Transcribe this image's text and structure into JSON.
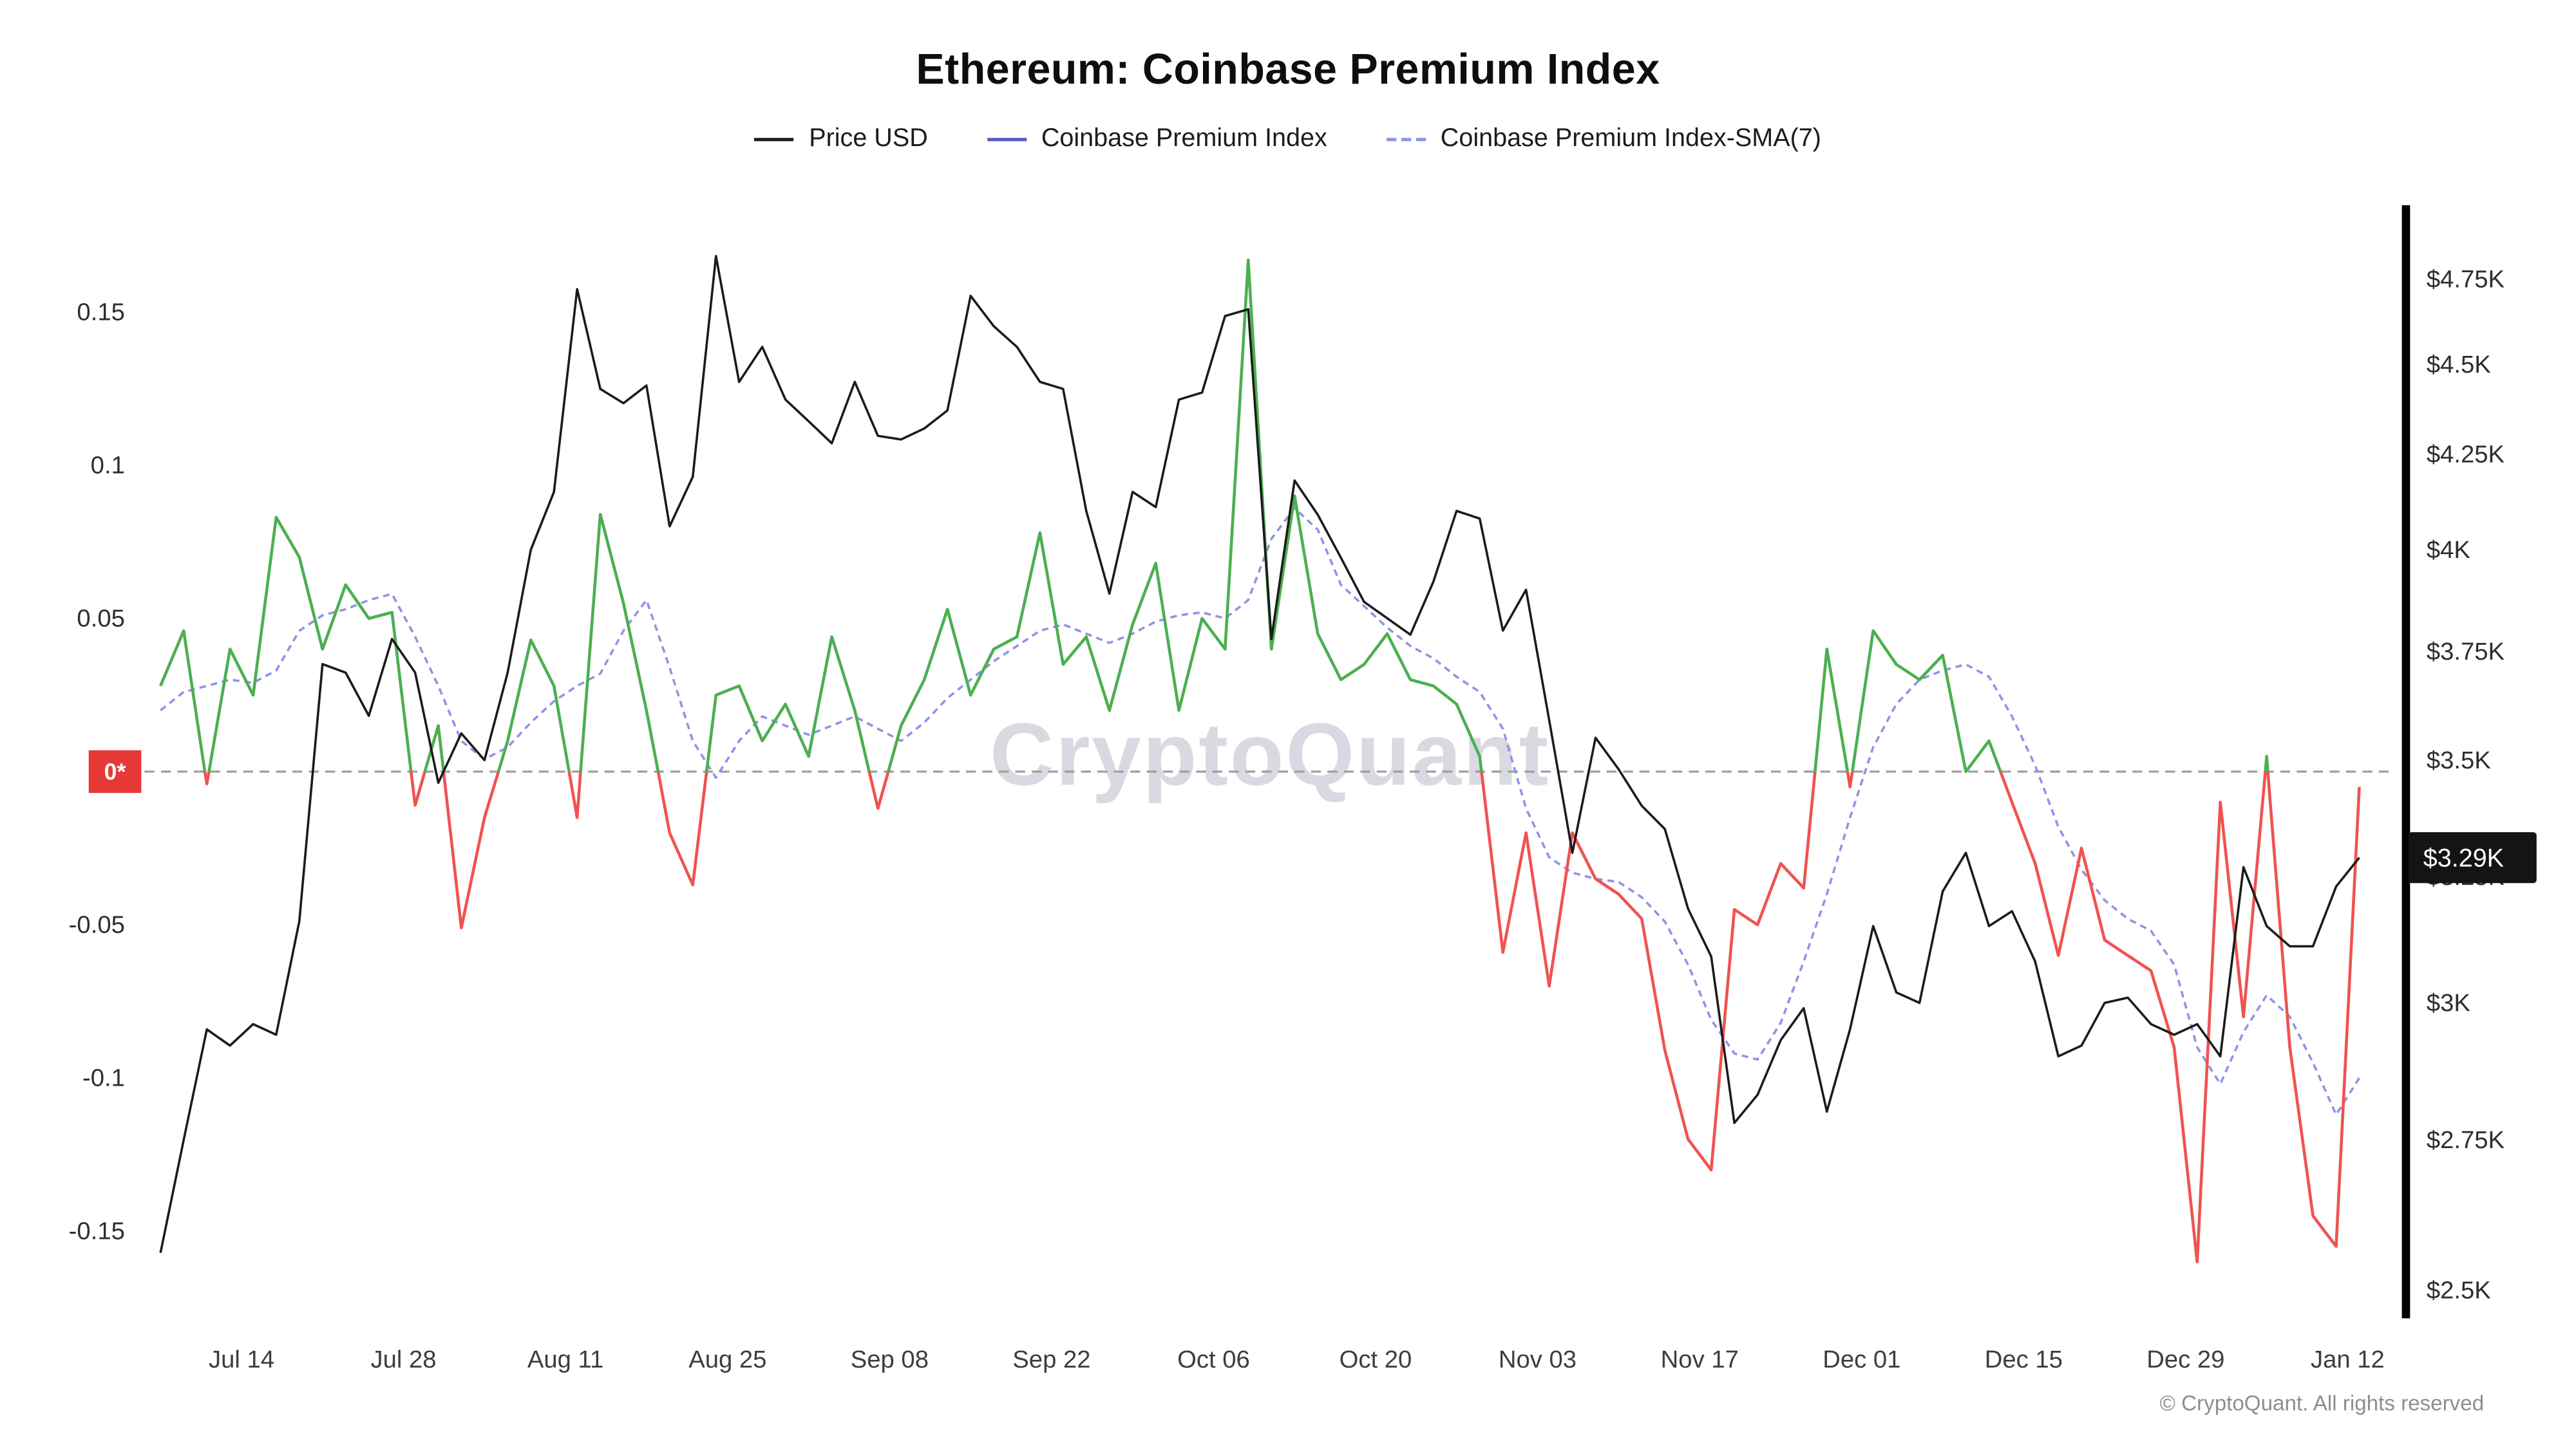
{
  "header": {
    "title": "Ethereum: Coinbase Premium Index"
  },
  "legend": [
    {
      "label": "Price USD",
      "color": "#1b1b1b",
      "style": "solid"
    },
    {
      "label": "Coinbase Premium Index",
      "color": "#5659c8",
      "style": "solid"
    },
    {
      "label": "Coinbase Premium Index-SMA(7)",
      "color": "#8f93e6",
      "style": "dashed"
    }
  ],
  "watermark": "CryptoQuant",
  "footer": {
    "copyright": "© CryptoQuant. All rights reserved"
  },
  "chart_data": {
    "type": "line",
    "title": "Ethereum: Coinbase Premium Index",
    "x_step_days": 2,
    "x_range_days": [
      0,
      191
    ],
    "x_ticks": {
      "days": [
        7,
        21,
        35,
        49,
        63,
        77,
        91,
        105,
        119,
        133,
        147,
        161,
        175,
        189
      ],
      "labels": [
        "Jul 14",
        "Jul 28",
        "Aug 11",
        "Aug 25",
        "Sep 08",
        "Sep 22",
        "Oct 06",
        "Oct 20",
        "Nov 03",
        "Nov 17",
        "Dec 01",
        "Dec 15",
        "Dec 29",
        "Jan 12"
      ]
    },
    "left_axis": {
      "name": "Coinbase Premium Index",
      "min": -0.175,
      "max": 0.185,
      "tick_values": [
        0.15,
        0.1,
        0.05,
        -0.05,
        -0.1,
        -0.15
      ],
      "tick_labels": [
        "0.15",
        "0.1",
        "0.05",
        "-0.05",
        "-0.1",
        "-0.15"
      ]
    },
    "right_axis": {
      "name": "Price USD",
      "scale": "log",
      "min": 2480,
      "max": 4900,
      "tick_values": [
        4750,
        4500,
        4250,
        4000,
        3750,
        3500,
        3250,
        3000,
        2750,
        2500
      ],
      "tick_labels": [
        "$4.75K",
        "$4.5K",
        "$4.25K",
        "$4K",
        "$3.75K",
        "$3.5K",
        "$3.25K",
        "$3K",
        "$2.75K",
        "$2.5K"
      ]
    },
    "zero_line": {
      "value": 0,
      "badge_label": "0*",
      "badge_bg": "#e53935"
    },
    "last_price": {
      "label": "$3.29K",
      "value": 3290,
      "badge_bg": "#141414"
    },
    "series": [
      {
        "name": "Price USD",
        "axis": "right",
        "color": "#1b1b1b",
        "style": "solid",
        "values": [
          2560,
          2750,
          2950,
          2920,
          2960,
          2940,
          3160,
          3720,
          3700,
          3600,
          3780,
          3700,
          3450,
          3560,
          3500,
          3700,
          4000,
          4150,
          4720,
          4430,
          4390,
          4440,
          4060,
          4190,
          4820,
          4450,
          4550,
          4400,
          4340,
          4280,
          4450,
          4300,
          4290,
          4320,
          4370,
          4700,
          4610,
          4550,
          4450,
          4430,
          4100,
          3890,
          4150,
          4110,
          4400,
          4420,
          4640,
          4660,
          3780,
          4180,
          4090,
          3980,
          3870,
          3830,
          3790,
          3920,
          4100,
          4080,
          3800,
          3900,
          3590,
          3300,
          3550,
          3480,
          3400,
          3350,
          3185,
          3090,
          2780,
          2830,
          2930,
          2990,
          2800,
          2950,
          3150,
          3020,
          3000,
          3220,
          3300,
          3150,
          3180,
          3080,
          2900,
          2920,
          3000,
          3010,
          2960,
          2940,
          2960,
          2900,
          3270,
          3150,
          3110,
          3110,
          3230,
          3290
        ]
      },
      {
        "name": "Coinbase Premium Index",
        "axis": "left",
        "style": "solid",
        "color_positive": "#4caf50",
        "color_negative": "#ef5350",
        "legend_color": "#5659c8",
        "values": [
          0.028,
          0.046,
          -0.004,
          0.04,
          0.025,
          0.083,
          0.07,
          0.04,
          0.061,
          0.05,
          0.052,
          -0.011,
          0.015,
          -0.051,
          -0.015,
          0.01,
          0.043,
          0.028,
          -0.015,
          0.084,
          0.055,
          0.02,
          -0.02,
          -0.037,
          0.025,
          0.028,
          0.01,
          0.022,
          0.005,
          0.044,
          0.02,
          -0.012,
          0.015,
          0.03,
          0.053,
          0.025,
          0.04,
          0.044,
          0.078,
          0.035,
          0.044,
          0.02,
          0.048,
          0.068,
          0.02,
          0.05,
          0.04,
          0.167,
          0.04,
          0.09,
          0.045,
          0.03,
          0.035,
          0.045,
          0.03,
          0.028,
          0.022,
          0.005,
          -0.059,
          -0.02,
          -0.07,
          -0.02,
          -0.035,
          -0.04,
          -0.048,
          -0.091,
          -0.12,
          -0.13,
          -0.045,
          -0.05,
          -0.03,
          -0.038,
          0.04,
          -0.005,
          0.046,
          0.035,
          0.03,
          0.038,
          0.0,
          0.01,
          -0.01,
          -0.03,
          -0.06,
          -0.025,
          -0.055,
          -0.06,
          -0.065,
          -0.09,
          -0.16,
          -0.01,
          -0.08,
          0.005,
          -0.09,
          -0.145,
          -0.155,
          -0.005
        ]
      },
      {
        "name": "Coinbase Premium Index-SMA(7)",
        "axis": "left",
        "color": "#8f93e6",
        "style": "dashed",
        "values": [
          0.02,
          0.026,
          0.028,
          0.03,
          0.029,
          0.033,
          0.046,
          0.051,
          0.053,
          0.056,
          0.058,
          0.044,
          0.028,
          0.01,
          0.004,
          0.008,
          0.016,
          0.023,
          0.028,
          0.032,
          0.046,
          0.056,
          0.034,
          0.01,
          -0.002,
          0.01,
          0.018,
          0.015,
          0.012,
          0.015,
          0.018,
          0.014,
          0.01,
          0.016,
          0.024,
          0.03,
          0.036,
          0.041,
          0.046,
          0.048,
          0.045,
          0.042,
          0.045,
          0.049,
          0.051,
          0.052,
          0.05,
          0.056,
          0.076,
          0.086,
          0.079,
          0.061,
          0.054,
          0.047,
          0.041,
          0.037,
          0.031,
          0.026,
          0.014,
          -0.012,
          -0.028,
          -0.033,
          -0.035,
          -0.036,
          -0.041,
          -0.049,
          -0.063,
          -0.081,
          -0.092,
          -0.094,
          -0.082,
          -0.062,
          -0.04,
          -0.015,
          0.008,
          0.022,
          0.03,
          0.033,
          0.035,
          0.031,
          0.018,
          0.002,
          -0.018,
          -0.032,
          -0.042,
          -0.048,
          -0.052,
          -0.063,
          -0.09,
          -0.102,
          -0.085,
          -0.073,
          -0.08,
          -0.095,
          -0.112,
          -0.1
        ]
      }
    ]
  }
}
